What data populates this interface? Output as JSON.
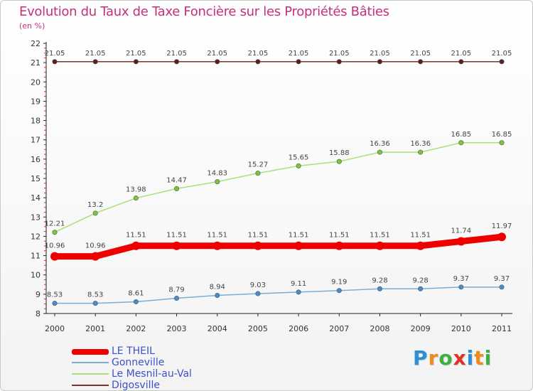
{
  "header": {
    "title": "Evolution du Taux de Taxe Foncière sur les Propriétés Bâties",
    "subtitle": "(en %)"
  },
  "chart_data": {
    "type": "line",
    "title": "Evolution du Taux de Taxe Foncière sur les Propriétés Bâties",
    "ylabel": "(en %)",
    "xlabel": "",
    "categories": [
      "2000",
      "2001",
      "2002",
      "2003",
      "2004",
      "2005",
      "2006",
      "2007",
      "2008",
      "2009",
      "2010",
      "2011"
    ],
    "ylim": [
      8,
      22
    ],
    "yticks": [
      "8",
      "9",
      "10",
      "11",
      "12",
      "13",
      "14",
      "15",
      "16",
      "17",
      "18",
      "19",
      "20",
      "21",
      "22"
    ],
    "grid": false,
    "legend_position": "bottom-left",
    "series": [
      {
        "name": "Digosville",
        "color": "#7a3535",
        "marker_color": "#5a1e1e",
        "bold": false,
        "values": [
          21.05,
          21.05,
          21.05,
          21.05,
          21.05,
          21.05,
          21.05,
          21.05,
          21.05,
          21.05,
          21.05,
          21.05
        ],
        "labels": [
          "21.05",
          "21.05",
          "21.05",
          "21.05",
          "21.05",
          "21.05",
          "21.05",
          "21.05",
          "21.05",
          "21.05",
          "21.05",
          "21.05"
        ]
      },
      {
        "name": "Le Mesnil-au-Val",
        "color": "#a8e07a",
        "marker_color": "#7cc63c",
        "bold": false,
        "values": [
          12.21,
          13.2,
          13.98,
          14.47,
          14.83,
          15.27,
          15.65,
          15.88,
          16.36,
          16.36,
          16.85,
          16.85
        ],
        "labels": [
          "12.21",
          "13.2",
          "13.98",
          "14.47",
          "14.83",
          "15.27",
          "15.65",
          "15.88",
          "16.36",
          "16.36",
          "16.85",
          "16.85"
        ]
      },
      {
        "name": "Gonneville",
        "color": "#7aaed6",
        "marker_color": "#4a8cc6",
        "bold": false,
        "values": [
          8.53,
          8.53,
          8.61,
          8.79,
          8.94,
          9.03,
          9.11,
          9.19,
          9.28,
          9.28,
          9.37,
          9.37
        ],
        "labels": [
          "8.53",
          "8.53",
          "8.61",
          "8.79",
          "8.94",
          "9.03",
          "9.11",
          "9.19",
          "9.28",
          "9.28",
          "9.37",
          "9.37"
        ]
      },
      {
        "name": "LE THEIL",
        "color": "#ee0000",
        "marker_color": "#ee0000",
        "bold": true,
        "values": [
          10.96,
          10.96,
          11.51,
          11.51,
          11.51,
          11.51,
          11.51,
          11.51,
          11.51,
          11.51,
          11.74,
          11.97
        ],
        "labels": [
          "10.96",
          "10.96",
          "11.51",
          "11.51",
          "11.51",
          "11.51",
          "11.51",
          "11.51",
          "11.51",
          "11.51",
          "11.74",
          "11.97"
        ]
      }
    ]
  },
  "legend": {
    "items": [
      {
        "label": "LE THEIL",
        "color": "#ee0000"
      },
      {
        "label": "Gonneville",
        "color": "#7aaed6"
      },
      {
        "label": "Le Mesnil-au-Val",
        "color": "#a8e07a"
      },
      {
        "label": "Digosville",
        "color": "#7a3535"
      }
    ]
  },
  "logo": {
    "text": "Proxiti",
    "letters": [
      "P",
      "r",
      "o",
      "x",
      "i",
      "t",
      "i"
    ],
    "colors": [
      "#2b8fd6",
      "#f08a1c",
      "#3cb043",
      "#e0302a",
      "#2b8fd6",
      "#f08a1c",
      "#3cb043"
    ]
  }
}
